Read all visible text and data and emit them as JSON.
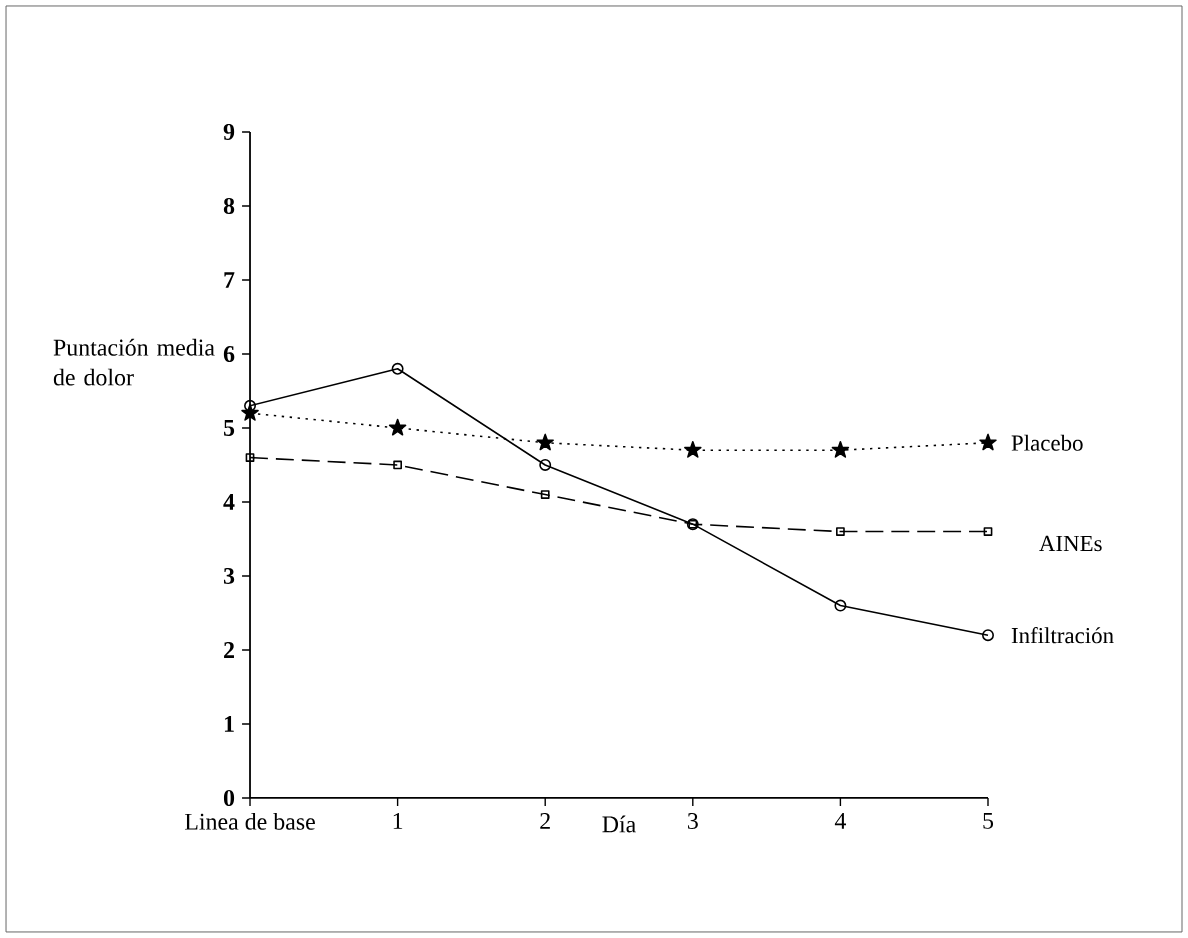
{
  "chart_data": {
    "type": "line",
    "xlabel": "Día",
    "ylabel": "Puntación media de dolor",
    "x": [
      0,
      1,
      2,
      3,
      4,
      5
    ],
    "xlim": [
      0,
      5
    ],
    "xticks": [
      {
        "value": 0,
        "label": "Linea de base"
      },
      1,
      2,
      3,
      4,
      5
    ],
    "ylim": [
      0,
      9
    ],
    "yticks": [
      0,
      1,
      2,
      3,
      4,
      5,
      6,
      7,
      8,
      9
    ],
    "grid": false,
    "legend": false,
    "series": [
      {
        "name": "Placebo",
        "color": "#000000",
        "marker": "star",
        "line_style": "dotted",
        "values": [
          5.2,
          5.0,
          4.8,
          4.7,
          4.7,
          4.8
        ]
      },
      {
        "name": "AINEs",
        "color": "#000000",
        "marker": "square",
        "line_style": "dashed",
        "values": [
          4.6,
          4.5,
          4.1,
          3.7,
          3.6,
          3.6
        ]
      },
      {
        "name": "Infiltración",
        "color": "#000000",
        "marker": "circle",
        "line_style": "solid",
        "values": [
          5.3,
          5.8,
          4.5,
          3.7,
          2.6,
          2.2
        ]
      }
    ]
  }
}
